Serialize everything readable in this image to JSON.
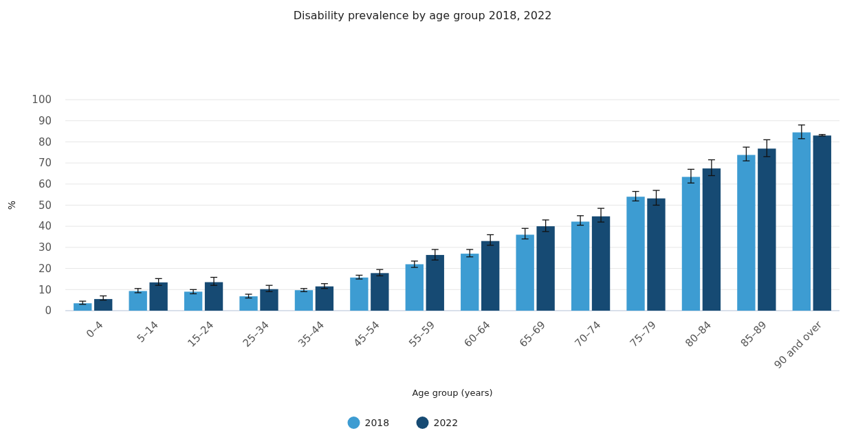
{
  "chart_data": {
    "type": "bar",
    "title": "Disability prevalence by age group 2018, 2022",
    "xlabel": "Age group (years)",
    "ylabel": "%",
    "categories": [
      "0–4",
      "5–14",
      "15–24",
      "25–34",
      "35–44",
      "45–54",
      "55–59",
      "60–64",
      "65–69",
      "70–74",
      "75–79",
      "80–84",
      "85–89",
      "90 and over"
    ],
    "series": [
      {
        "name": "2018",
        "color": "#3d9cd2",
        "values": [
          3.5,
          9.3,
          9,
          6.8,
          9.7,
          15.7,
          22,
          27,
          36,
          42.2,
          54,
          63.4,
          73.8,
          84.5
        ],
        "errors": [
          [
            3,
            4.5
          ],
          [
            8.5,
            10.5
          ],
          [
            8,
            10
          ],
          [
            6,
            7.8
          ],
          [
            9,
            10.5
          ],
          [
            15,
            16.8
          ],
          [
            20.5,
            23.5
          ],
          [
            25.5,
            29
          ],
          [
            34,
            39
          ],
          [
            40.5,
            45
          ],
          [
            52,
            56.5
          ],
          [
            60.5,
            67
          ],
          [
            71,
            77.5
          ],
          [
            81.5,
            88
          ]
        ]
      },
      {
        "name": "2022",
        "color": "#164a73",
        "values": [
          5.5,
          13.4,
          13.5,
          10.2,
          11.5,
          17.8,
          26.4,
          33,
          40,
          44.7,
          53.2,
          67.4,
          76.8,
          83
        ],
        "errors": [
          [
            5,
            7
          ],
          [
            12,
            15.2
          ],
          [
            12,
            15.8
          ],
          [
            9,
            12
          ],
          [
            10.5,
            12.8
          ],
          [
            16.5,
            19.5
          ],
          [
            24,
            29
          ],
          [
            31,
            36
          ],
          [
            37.5,
            43
          ],
          [
            42,
            48.5
          ],
          [
            50,
            57
          ],
          [
            64,
            71.5
          ],
          [
            73,
            81
          ],
          [
            82.8,
            83.5
          ]
        ]
      }
    ],
    "ylim": [
      0,
      100
    ],
    "yticks": [
      0,
      10,
      20,
      30,
      40,
      50,
      60,
      70,
      80,
      90,
      100
    ],
    "grid": "y",
    "legend": "bottom"
  }
}
